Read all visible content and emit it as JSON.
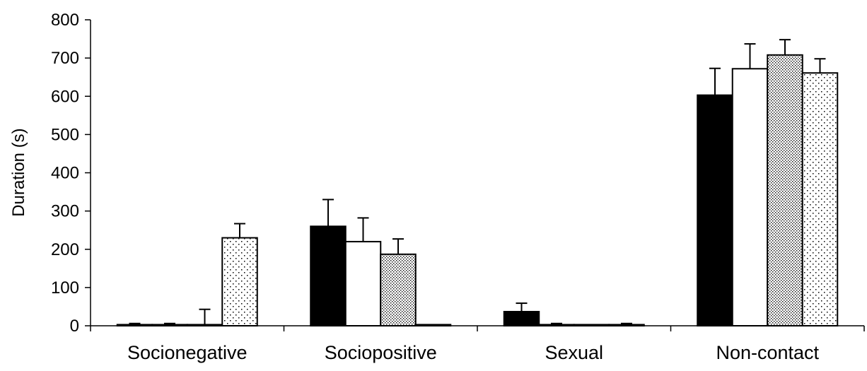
{
  "chart_data": {
    "type": "bar",
    "title": "",
    "xlabel": "",
    "ylabel": "Duration (s)",
    "ylim": [
      0,
      800
    ],
    "yticks": [
      0,
      100,
      200,
      300,
      400,
      500,
      600,
      700,
      800
    ],
    "grid": false,
    "legend": "none",
    "categories": [
      "Socionegative",
      "Sociopositive",
      "Sexual",
      "Non-contact"
    ],
    "series": [
      {
        "fill": "solid-black",
        "values": [
          3,
          260,
          37,
          603
        ],
        "errors": [
          3,
          70,
          22,
          70
        ]
      },
      {
        "fill": "white",
        "values": [
          3,
          220,
          3,
          672
        ],
        "errors": [
          3,
          62,
          3,
          65
        ]
      },
      {
        "fill": "dense-dots",
        "values": [
          3,
          187,
          3,
          708
        ],
        "errors": [
          40,
          40,
          0,
          40
        ],
        "errors_note_override": [
          0,
          0,
          0,
          0
        ]
      },
      {
        "fill": "sparse-dots",
        "values": [
          230,
          3,
          3,
          661
        ],
        "errors": [
          37,
          0,
          3,
          37
        ]
      }
    ]
  },
  "ytick_labels": [
    "0",
    "100",
    "200",
    "300",
    "400",
    "500",
    "600",
    "700",
    "800"
  ]
}
